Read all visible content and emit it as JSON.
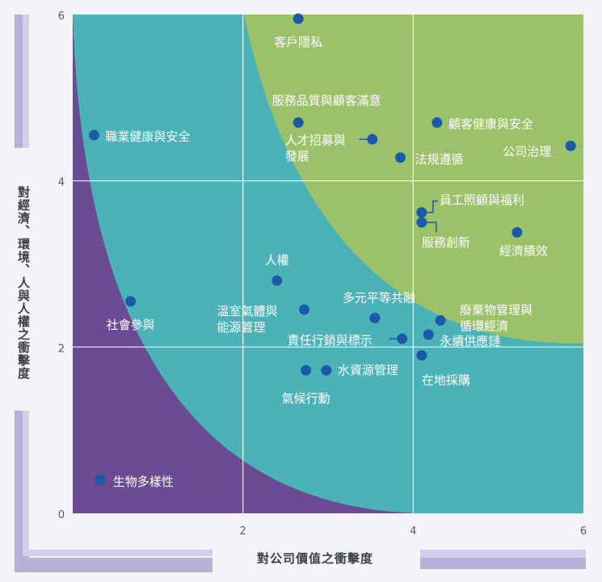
{
  "chart_data": {
    "type": "scatter",
    "xlabel": "對公司價值之衝擊度",
    "ylabel": "對經濟、環境、人與人權之衝擊度",
    "xlim": [
      0,
      6
    ],
    "ylim": [
      0,
      6
    ],
    "xticks": [
      "0",
      "2",
      "4",
      "6"
    ],
    "yticks": [
      "0",
      "2",
      "4",
      "6"
    ],
    "grid": true,
    "zone_colors": [
      "#6a4b94",
      "#4bb3b7",
      "#9bc26b"
    ],
    "point_color": "#1a5aa8",
    "points": [
      {
        "label": "客戶隱私",
        "x": 2.65,
        "y": 5.95
      },
      {
        "label": "服務品質與顧客滿意",
        "x": 2.65,
        "y": 4.7
      },
      {
        "label": "顧客健康與安全",
        "x": 4.28,
        "y": 4.7
      },
      {
        "label": "人才招募與發展",
        "x": 3.52,
        "y": 4.5
      },
      {
        "label": "法規遵循",
        "x": 3.85,
        "y": 4.28
      },
      {
        "label": "公司治理",
        "x": 5.85,
        "y": 4.42
      },
      {
        "label": "職業健康與安全",
        "x": 0.25,
        "y": 4.55
      },
      {
        "label": "員工照顧與福利",
        "x": 4.1,
        "y": 3.62
      },
      {
        "label": "服務創新",
        "x": 4.1,
        "y": 3.5
      },
      {
        "label": "經濟績效",
        "x": 5.22,
        "y": 3.38
      },
      {
        "label": "人權",
        "x": 2.4,
        "y": 2.8
      },
      {
        "label": "社會參與",
        "x": 0.68,
        "y": 2.55
      },
      {
        "label": "溫室氣體與能源管理",
        "x": 2.72,
        "y": 2.45
      },
      {
        "label": "多元平等共融",
        "x": 3.55,
        "y": 2.35
      },
      {
        "label": "廢棄物管理與循環經濟",
        "x": 4.32,
        "y": 2.32
      },
      {
        "label": "永續供應鏈",
        "x": 4.18,
        "y": 2.15
      },
      {
        "label": "責任行銷與標示",
        "x": 3.87,
        "y": 2.1
      },
      {
        "label": "在地採購",
        "x": 4.1,
        "y": 1.9
      },
      {
        "label": "水資源管理",
        "x": 2.98,
        "y": 1.72
      },
      {
        "label": "氣候行動",
        "x": 2.74,
        "y": 1.72
      },
      {
        "label": "生物多樣性",
        "x": 0.32,
        "y": 0.4
      }
    ]
  }
}
